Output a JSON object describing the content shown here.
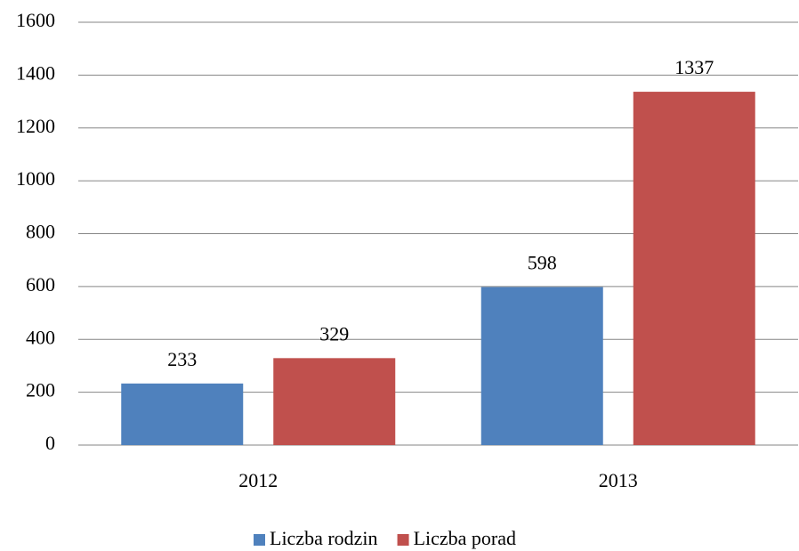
{
  "chart_data": {
    "type": "bar",
    "categories": [
      "2012",
      "2013"
    ],
    "series": [
      {
        "name": "Liczba rodzin",
        "color": "#4f81bd",
        "values": [
          233,
          598
        ]
      },
      {
        "name": "Liczba porad",
        "color": "#c0504d",
        "values": [
          329,
          1337
        ]
      }
    ],
    "ylim": [
      0,
      1600
    ],
    "yticks": [
      0,
      200,
      400,
      600,
      800,
      1000,
      1200,
      1400,
      1600
    ],
    "grid": true,
    "legend": "bottom"
  }
}
